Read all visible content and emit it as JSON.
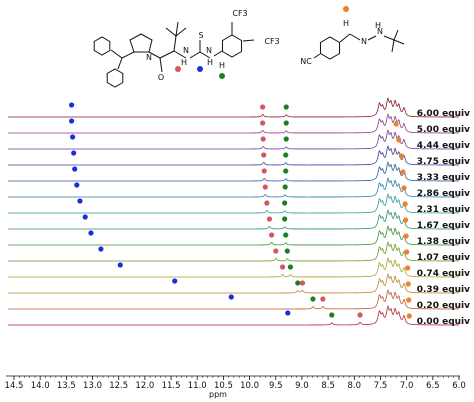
{
  "chart_data": {
    "type": "line",
    "xlabel": "ppm",
    "xlim": [
      14.5,
      6.0
    ],
    "xticks": [
      14.5,
      14.0,
      13.5,
      13.0,
      12.5,
      12.0,
      11.5,
      11.0,
      10.5,
      10.0,
      9.5,
      9.0,
      8.5,
      8.0,
      7.5,
      7.0,
      6.5,
      6.0
    ],
    "xtick_labels": [
      "14.5",
      "14.0",
      "13.5",
      "13.0",
      "12.5",
      "12.0",
      "11.5",
      "11.0",
      "10.5",
      "10.0",
      "9.5",
      "9.0",
      "8.5",
      "8.0",
      "7.5",
      "7.0",
      "6.5",
      "6.0"
    ],
    "marker_colors": {
      "blue": "#1f2fd6",
      "red": "#d4575f",
      "green": "#1e7f1e",
      "orange": "#f07f2a"
    },
    "series": [
      {
        "name": "6.00 equiv",
        "color": "#8b1a2f",
        "blue": 13.4,
        "red": 9.75,
        "green": 9.3,
        "orange": null
      },
      {
        "name": "5.00 equiv",
        "color": "#8a3a86",
        "blue": 13.4,
        "red": 9.75,
        "green": 9.3,
        "orange": 7.2
      },
      {
        "name": "4.44 equiv",
        "color": "#6a3e9a",
        "blue": 13.38,
        "red": 9.74,
        "green": 9.3,
        "orange": 7.15
      },
      {
        "name": "3.75 equiv",
        "color": "#3c3f99",
        "blue": 13.36,
        "red": 9.73,
        "green": 9.31,
        "orange": 7.1
      },
      {
        "name": "3.33 equiv",
        "color": "#2f5c9e",
        "blue": 13.34,
        "red": 9.72,
        "green": 9.31,
        "orange": 7.07
      },
      {
        "name": "2.86 equiv",
        "color": "#2a7eaa",
        "blue": 13.3,
        "red": 9.7,
        "green": 9.32,
        "orange": 7.05
      },
      {
        "name": "2.31 equiv",
        "color": "#2f9a9a",
        "blue": 13.24,
        "red": 9.67,
        "green": 9.33,
        "orange": 7.03
      },
      {
        "name": "1.67 equiv",
        "color": "#2f8f6a",
        "blue": 13.14,
        "red": 9.62,
        "green": 9.33,
        "orange": 7.02
      },
      {
        "name": "1.38 equiv",
        "color": "#3c8f3c",
        "blue": 13.03,
        "red": 9.58,
        "green": 9.31,
        "orange": 7.01
      },
      {
        "name": "1.07 equiv",
        "color": "#6b9a2a",
        "blue": 12.84,
        "red": 9.5,
        "green": 9.28,
        "orange": 7.0
      },
      {
        "name": "0.74 equiv",
        "color": "#a8a12a",
        "blue": 12.47,
        "red": 9.37,
        "green": 9.22,
        "orange": 6.98
      },
      {
        "name": "0.39 equiv",
        "color": "#b8862a",
        "blue": 11.43,
        "red": 8.99,
        "green": 9.08,
        "orange": 6.97
      },
      {
        "name": "0.20 equiv",
        "color": "#b85a2a",
        "blue": 10.35,
        "red": 8.6,
        "green": 8.79,
        "orange": 6.96
      },
      {
        "name": "0.00 equiv",
        "color": "#b8272f",
        "blue": 9.27,
        "red": 7.89,
        "green": 8.43,
        "orange": 6.95
      }
    ]
  },
  "structure": {
    "cf3_top": "CF3",
    "cf3_right": "CF3",
    "nitrile": "NC",
    "n_labels": [
      "N",
      "N",
      "N"
    ],
    "h_labels": [
      "H",
      "H",
      "H",
      "H",
      "H"
    ],
    "s_label": "S",
    "o_label": "O"
  }
}
